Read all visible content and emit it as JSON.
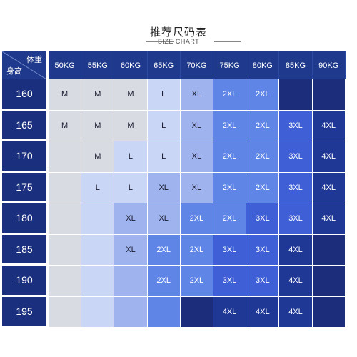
{
  "title": "推荐尺码表",
  "subtitle": "SIZE CHART",
  "corner": {
    "weight_label": "体重",
    "height_label": "身高"
  },
  "weights": [
    "50KG",
    "55KG",
    "60KG",
    "65KG",
    "70KG",
    "75KG",
    "80KG",
    "85KG",
    "90KG"
  ],
  "heights": [
    "160",
    "165",
    "170",
    "175",
    "180",
    "185",
    "190",
    "195"
  ],
  "sizes": [
    [
      "M",
      "M",
      "M",
      "L",
      "XL",
      "2XL",
      "2XL",
      "",
      ""
    ],
    [
      "M",
      "M",
      "M",
      "L",
      "XL",
      "2XL",
      "2XL",
      "3XL",
      "4XL"
    ],
    [
      "",
      "M",
      "L",
      "L",
      "XL",
      "2XL",
      "2XL",
      "3XL",
      "4XL"
    ],
    [
      "",
      "L",
      "L",
      "XL",
      "XL",
      "2XL",
      "2XL",
      "3XL",
      "4XL"
    ],
    [
      "",
      "",
      "XL",
      "XL",
      "2XL",
      "2XL",
      "3XL",
      "3XL",
      "4XL"
    ],
    [
      "",
      "",
      "XL",
      "2XL",
      "2XL",
      "3XL",
      "3XL",
      "4XL",
      ""
    ],
    [
      "",
      "",
      "",
      "2XL",
      "2XL",
      "3XL",
      "3XL",
      "4XL",
      ""
    ],
    [
      "",
      "",
      "",
      "",
      "",
      "4XL",
      "4XL",
      "4XL",
      ""
    ]
  ],
  "colors": {
    "": "#d9dbe3",
    "M": "#d9dbe3",
    "L": "#c9d6f5",
    "XL": "#9fb4ee",
    "2XL": "#5f86e6",
    "3XL": "#3f5fd6",
    "4XL": "#1f3896",
    "empty_light": "#d9dbe3",
    "empty_blue": "#c9d6f5",
    "empty_mid": "#9fb4ee",
    "empty_dark": "#1c2d7c",
    "header": "#1f3a8c",
    "rowheader": "#1a2f7e"
  },
  "empty_fill": [
    [
      "",
      "",
      "",
      "",
      "",
      "",
      "",
      "empty_dark",
      "empty_dark"
    ],
    [
      "",
      "",
      "",
      "",
      "",
      "",
      "",
      "",
      ""
    ],
    [
      "empty_light",
      "",
      "",
      "",
      "",
      "",
      "",
      "",
      ""
    ],
    [
      "empty_light",
      "",
      "",
      "",
      "",
      "",
      "",
      "",
      ""
    ],
    [
      "empty_light",
      "empty_blue",
      "",
      "",
      "",
      "",
      "",
      "",
      ""
    ],
    [
      "empty_light",
      "empty_blue",
      "",
      "",
      "",
      "",
      "",
      "",
      "empty_dark"
    ],
    [
      "empty_light",
      "empty_blue",
      "empty_mid",
      "",
      "",
      "",
      "",
      "",
      "empty_dark"
    ],
    [
      "empty_light",
      "empty_blue",
      "empty_mid",
      "2XL",
      "empty_dark",
      "",
      "",
      "",
      "empty_dark"
    ]
  ]
}
